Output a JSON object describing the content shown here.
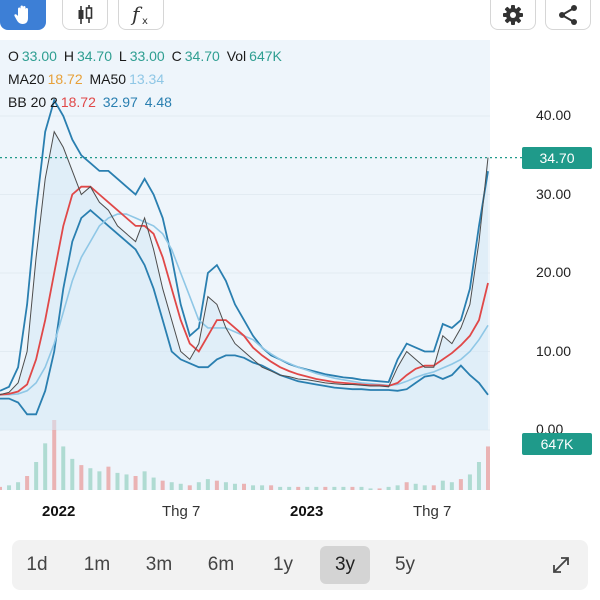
{
  "toolbar": {
    "tools": [
      {
        "name": "hand-tool",
        "icon": "hand-icon",
        "active": true
      },
      {
        "name": "candlestick-tool",
        "icon": "candlestick-icon",
        "active": false
      },
      {
        "name": "formula-tool",
        "icon": "fx-icon",
        "active": false
      }
    ],
    "right": [
      {
        "name": "settings",
        "icon": "gear-icon"
      },
      {
        "name": "share",
        "icon": "share-icon"
      }
    ]
  },
  "legend": {
    "o_label": "O",
    "o_value": "33.00",
    "h_label": "H",
    "h_value": "34.70",
    "l_label": "L",
    "l_value": "33.00",
    "c_label": "C",
    "c_value": "34.70",
    "vol_label": "Vol",
    "vol_value": "647K",
    "ma20_label": "MA20",
    "ma20_value": "18.72",
    "ma50_label": "MA50",
    "ma50_value": "13.34",
    "bb_label": "BB 20 2",
    "bb_mid": "18.72",
    "bb_upper": "32.97",
    "bb_width": "4.48"
  },
  "colors": {
    "ohlc": "#2e9e91",
    "ma20": "#e7a13a",
    "ma50": "#8fc7e6",
    "bb_mid": "#e04848",
    "bb_band": "#2a7fb0",
    "price_line": "#1f9a8a"
  },
  "price_tag": "34.70",
  "volume_tag": "647K",
  "chart_data": {
    "type": "line",
    "y_axis_ticks": [
      "40.00",
      "30.00",
      "20.00",
      "10.00",
      "0.00"
    ],
    "ylim": [
      0,
      42
    ],
    "x_axis_ticks": [
      {
        "label": "2022",
        "bold": true
      },
      {
        "label": "Thg 7",
        "bold": false
      },
      {
        "label": "2023",
        "bold": true
      },
      {
        "label": "Thg 7",
        "bold": false
      }
    ],
    "last_price": 34.7,
    "series": [
      {
        "name": "Close",
        "values": [
          4.5,
          4.8,
          6,
          10,
          22,
          32,
          38,
          36,
          33,
          30,
          31,
          29,
          28,
          26,
          25,
          24,
          27,
          23,
          18,
          14,
          10,
          9,
          11,
          17,
          16,
          13,
          11,
          10,
          9,
          8,
          7.5,
          7,
          6.8,
          6.5,
          6.4,
          6.2,
          6.0,
          5.9,
          5.8,
          5.8,
          5.7,
          5.6,
          5.6,
          5.5,
          8,
          10,
          9,
          8,
          8,
          12,
          11,
          13,
          16,
          24,
          34.7
        ]
      },
      {
        "name": "MA20",
        "values": [
          4.5,
          4.6,
          4.9,
          5.8,
          9,
          14,
          20,
          26,
          30,
          31,
          31,
          30,
          29,
          28,
          27,
          26,
          26,
          25,
          22,
          18,
          14,
          11,
          10,
          12,
          14,
          14,
          13,
          12,
          10.5,
          9.5,
          8.7,
          8,
          7.5,
          7.1,
          6.8,
          6.5,
          6.3,
          6.1,
          6.0,
          5.9,
          5.8,
          5.7,
          5.7,
          5.6,
          6,
          7,
          7.8,
          8.2,
          8.2,
          9,
          9.8,
          10.8,
          12,
          14,
          18.72
        ]
      },
      {
        "name": "MA50",
        "values": [
          4.5,
          4.5,
          4.6,
          5,
          6,
          8,
          11,
          15,
          19,
          22,
          24,
          26,
          27,
          27.5,
          27.5,
          27,
          26.5,
          26,
          25,
          23,
          20,
          17,
          14,
          13,
          13,
          13,
          12.5,
          12,
          11.5,
          10.5,
          9.7,
          9,
          8.5,
          8,
          7.6,
          7.2,
          6.9,
          6.6,
          6.4,
          6.2,
          6.0,
          5.9,
          5.8,
          5.7,
          5.8,
          6.2,
          6.7,
          7.1,
          7.4,
          7.9,
          8.4,
          9,
          10,
          11.5,
          13.34
        ]
      },
      {
        "name": "BB upper",
        "values": [
          5,
          5.5,
          8,
          16,
          28,
          38,
          42,
          40,
          37,
          35,
          34,
          33,
          33,
          32,
          31,
          30,
          32,
          30,
          27,
          22,
          16,
          12,
          13,
          20,
          21,
          19,
          16,
          14,
          12,
          10.5,
          9.5,
          9,
          8.4,
          8,
          7.7,
          7.4,
          7.1,
          6.9,
          6.7,
          6.6,
          6.4,
          6.3,
          6.2,
          6.1,
          9,
          11,
          10.5,
          10,
          10,
          13.5,
          13,
          14,
          18,
          26,
          32.97
        ]
      },
      {
        "name": "BB lower",
        "values": [
          4,
          4,
          3.5,
          2,
          2,
          5,
          10,
          18,
          24,
          27,
          28,
          27,
          26,
          25,
          24,
          23,
          21,
          18,
          14,
          10,
          9,
          8.5,
          8,
          8,
          9,
          9.5,
          9.5,
          9.2,
          8.6,
          8.2,
          7.6,
          7,
          6.6,
          6.2,
          6,
          5.8,
          5.6,
          5.4,
          5.3,
          5.2,
          5.2,
          5.1,
          5.1,
          5.1,
          5,
          5.2,
          6,
          6.8,
          7,
          6.5,
          7,
          8.2,
          7,
          6,
          4.48
        ]
      }
    ],
    "volume": [
      2,
      3,
      5,
      9,
      18,
      30,
      45,
      28,
      20,
      16,
      14,
      12,
      15,
      11,
      10,
      9,
      12,
      8,
      6,
      5,
      4,
      3,
      5,
      7,
      6,
      5,
      4,
      4,
      3,
      3,
      3,
      2,
      2,
      2,
      2,
      2,
      2,
      2,
      2,
      2,
      2,
      1,
      1,
      2,
      3,
      5,
      4,
      3,
      3,
      6,
      5,
      7,
      10,
      18,
      28
    ]
  },
  "range_buttons": [
    "1d",
    "1m",
    "3m",
    "6m",
    "1y",
    "3y",
    "5y"
  ],
  "range_selected": "3y"
}
